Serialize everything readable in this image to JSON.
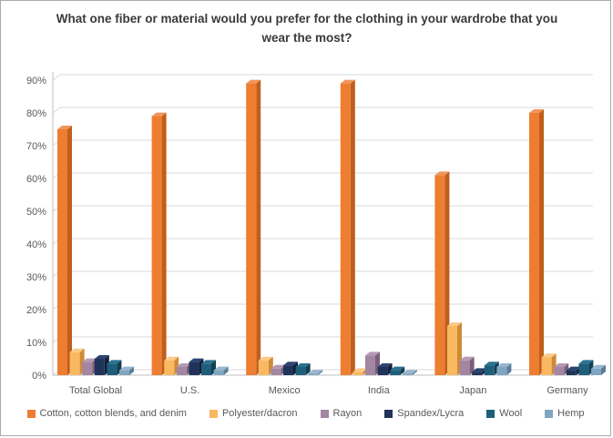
{
  "title": "What one fiber or material would you prefer for the clothing in your wardrobe that you wear the most?",
  "chart_data": {
    "type": "bar",
    "style": "3d-clustered-column",
    "categories": [
      "Total Global",
      "U.S.",
      "Mexico",
      "India",
      "Japan",
      "Germany"
    ],
    "series": [
      {
        "name": "Cotton, cotton blends, and denim",
        "color": "#ED7D31",
        "side_color": "#C05E1C",
        "top_color": "#F0965C",
        "values": [
          75,
          79,
          89,
          89,
          61,
          80
        ]
      },
      {
        "name": "Polyester/dacron",
        "color": "#FAB861",
        "side_color": "#CE8B36",
        "top_color": "#FBCA86",
        "values": [
          7,
          4.5,
          4.5,
          1,
          15,
          5.5
        ]
      },
      {
        "name": "Rayon",
        "color": "#A386A2",
        "side_color": "#7B5F7A",
        "top_color": "#B49AB3",
        "values": [
          4,
          2.5,
          2,
          6,
          4.5,
          2.5
        ]
      },
      {
        "name": "Spandex/Lycra",
        "color": "#20335A",
        "side_color": "#141F3A",
        "top_color": "#2C4470",
        "values": [
          5,
          4,
          3,
          2.5,
          1,
          1.5
        ]
      },
      {
        "name": "Wool",
        "color": "#1F5E7B",
        "side_color": "#133D52",
        "top_color": "#2A7292",
        "values": [
          3.5,
          3.5,
          2.5,
          1.5,
          3,
          3.5
        ]
      },
      {
        "name": "Hemp",
        "color": "#7FA5C1",
        "side_color": "#5A7E99",
        "top_color": "#97B7CE",
        "values": [
          1.5,
          1.5,
          0.5,
          0.5,
          2.5,
          2
        ]
      }
    ],
    "ylabel": "",
    "xlabel": "",
    "ylim": [
      0,
      90
    ],
    "ytick_step": 10,
    "ytick_suffix": "%",
    "grid": true,
    "legend_position": "bottom",
    "axis_label_color": "#595959",
    "gridline_color": "#D9D9D9",
    "axis_line_color": "#BFBFBF"
  }
}
